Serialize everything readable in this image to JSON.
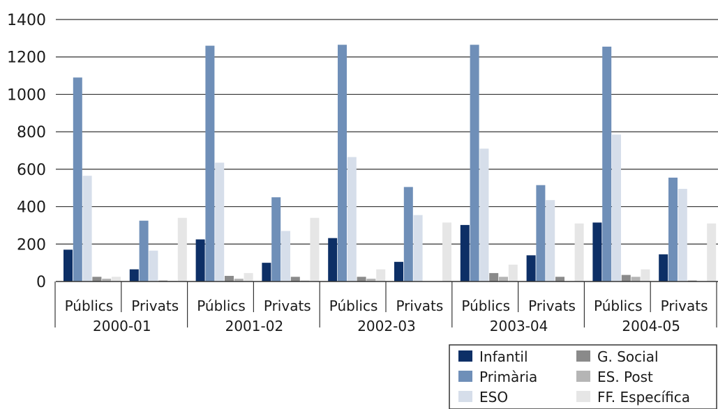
{
  "chart_data": {
    "type": "bar",
    "ylim": [
      0,
      1400
    ],
    "yticks": [
      0,
      200,
      400,
      600,
      800,
      1000,
      1200,
      1400
    ],
    "grid": true,
    "legend_position": "bottom-right",
    "groups": [
      {
        "year": "2000-01",
        "categories": [
          "Públics",
          "Privats"
        ]
      },
      {
        "year": "2001-02",
        "categories": [
          "Públics",
          "Privats"
        ]
      },
      {
        "year": "2002-03",
        "categories": [
          "Públics",
          "Privats"
        ]
      },
      {
        "year": "2003-04",
        "categories": [
          "Públics",
          "Privats"
        ]
      },
      {
        "year": "2004-05",
        "categories": [
          "Públics",
          "Privats"
        ]
      }
    ],
    "categories": [
      "Públics",
      "Privats",
      "Públics",
      "Privats",
      "Públics",
      "Privats",
      "Públics",
      "Privats",
      "Públics",
      "Privats"
    ],
    "series": [
      {
        "name": "Infantil",
        "color": "#0d2f66",
        "values": [
          170,
          65,
          225,
          100,
          232,
          105,
          302,
          140,
          315,
          145
        ]
      },
      {
        "name": "Primària",
        "color": "#6f8fb8",
        "values": [
          1090,
          325,
          1260,
          450,
          1265,
          505,
          1265,
          515,
          1255,
          555
        ]
      },
      {
        "name": "ESO",
        "color": "#d6deea",
        "values": [
          565,
          165,
          635,
          270,
          665,
          355,
          710,
          435,
          785,
          495
        ]
      },
      {
        "name": "G. Social",
        "color": "#8a8a8a",
        "values": [
          25,
          5,
          30,
          25,
          25,
          0,
          45,
          25,
          35,
          5
        ]
      },
      {
        "name": "ES. Post",
        "color": "#b5b5b5",
        "values": [
          15,
          3,
          15,
          5,
          15,
          0,
          25,
          0,
          25,
          0
        ]
      },
      {
        "name": "FF. Específica",
        "color": "#e6e6e6",
        "values": [
          25,
          340,
          45,
          340,
          65,
          315,
          90,
          310,
          65,
          310
        ]
      }
    ]
  }
}
